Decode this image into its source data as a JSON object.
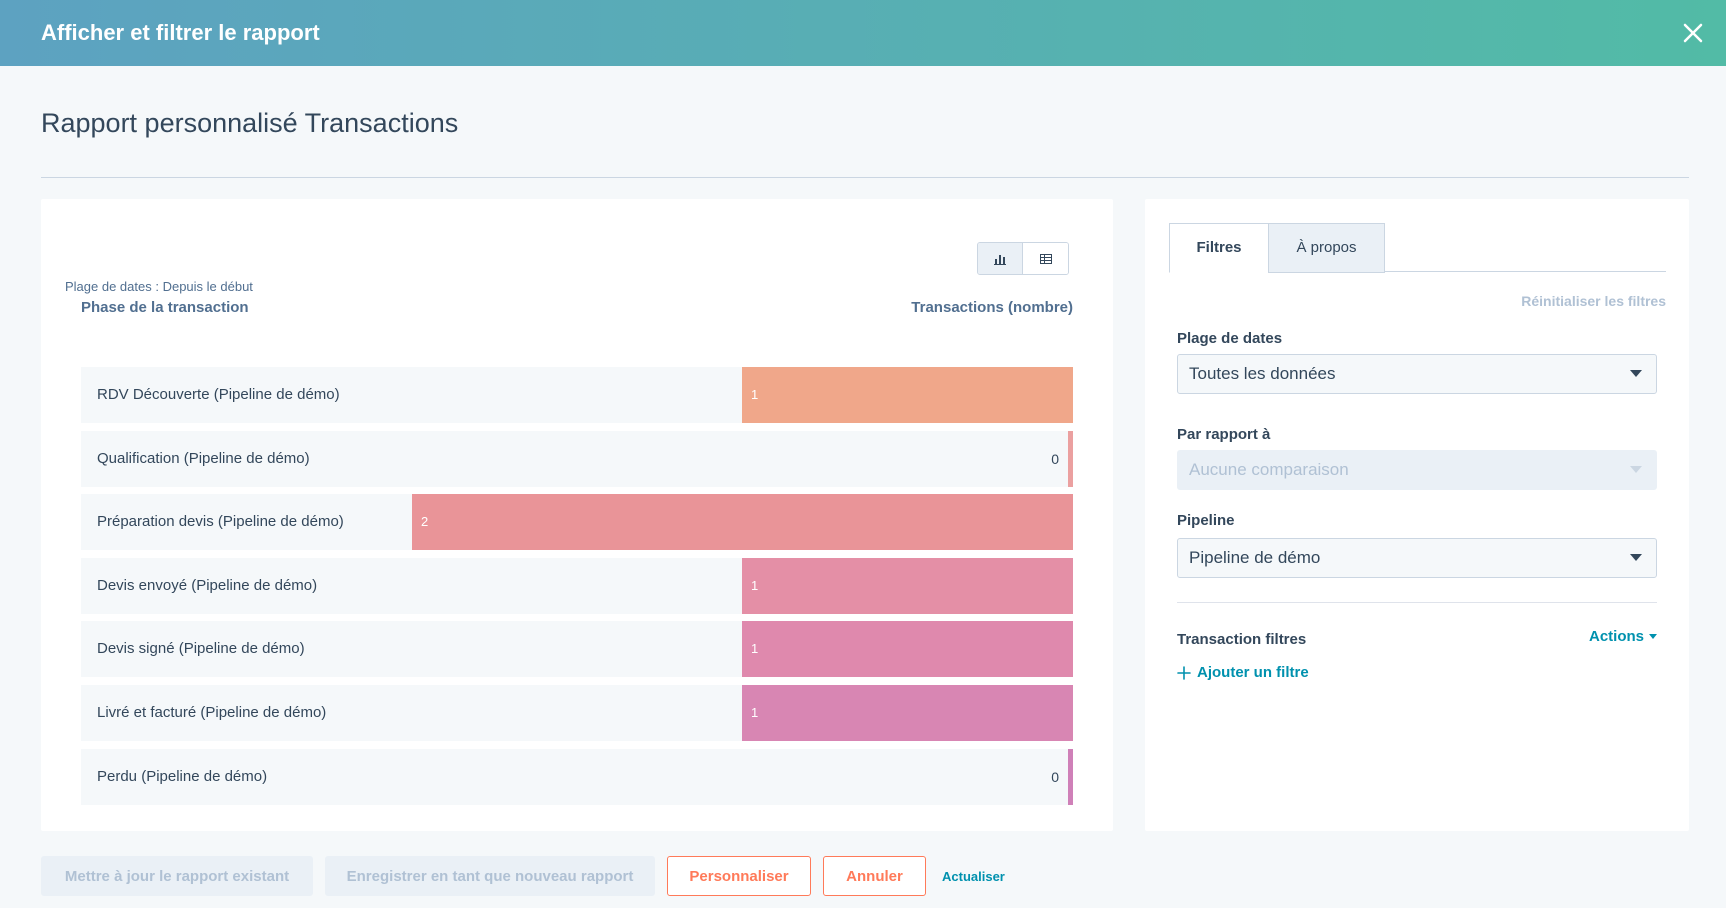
{
  "header": {
    "title": "Afficher et filtrer le rapport"
  },
  "page": {
    "title": "Rapport personnalisé Transactions"
  },
  "chart_panel": {
    "date_range": "Plage de dates : Depuis le début",
    "left_axis_label": "Phase de la transaction",
    "right_axis_label": "Transactions (nombre)"
  },
  "chart_data": {
    "type": "bar",
    "orientation": "horizontal",
    "xlabel": "Transactions (nombre)",
    "ylabel": "Phase de la transaction",
    "xlim": [
      0,
      2
    ],
    "categories": [
      "RDV Découverte (Pipeline de démo)",
      "Qualification (Pipeline de démo)",
      "Préparation devis (Pipeline de démo)",
      "Devis envoyé (Pipeline de démo)",
      "Devis signé (Pipeline de démo)",
      "Livré et facturé (Pipeline de démo)",
      "Perdu (Pipeline de démo)"
    ],
    "values": [
      1,
      0,
      2,
      1,
      1,
      1,
      0
    ],
    "colors": [
      "#f0a78a",
      "#eba0a0",
      "#e99498",
      "#e48fa6",
      "#df89ad",
      "#d886b3",
      "#cf80b8"
    ],
    "value_labels": [
      "1",
      "0",
      "2",
      "1",
      "1",
      "1",
      "0"
    ]
  },
  "filters_panel": {
    "tabs": [
      {
        "label": "Filtres"
      },
      {
        "label": "À propos"
      }
    ],
    "reset_label": "Réinitialiser les filtres",
    "date_range_label": "Plage de dates",
    "date_range_value": "Toutes les données",
    "compare_label": "Par rapport à",
    "compare_value": "Aucune comparaison",
    "pipeline_label": "Pipeline",
    "pipeline_value": "Pipeline de démo",
    "filters_title": "Transaction filtres",
    "actions_label": "Actions",
    "add_filter_label": "Ajouter un filtre"
  },
  "footer": {
    "update_label": "Mettre à jour le rapport existant",
    "save_new_label": "Enregistrer en tant que nouveau rapport",
    "customize_label": "Personnaliser",
    "cancel_label": "Annuler",
    "refresh_label": "Actualiser"
  }
}
